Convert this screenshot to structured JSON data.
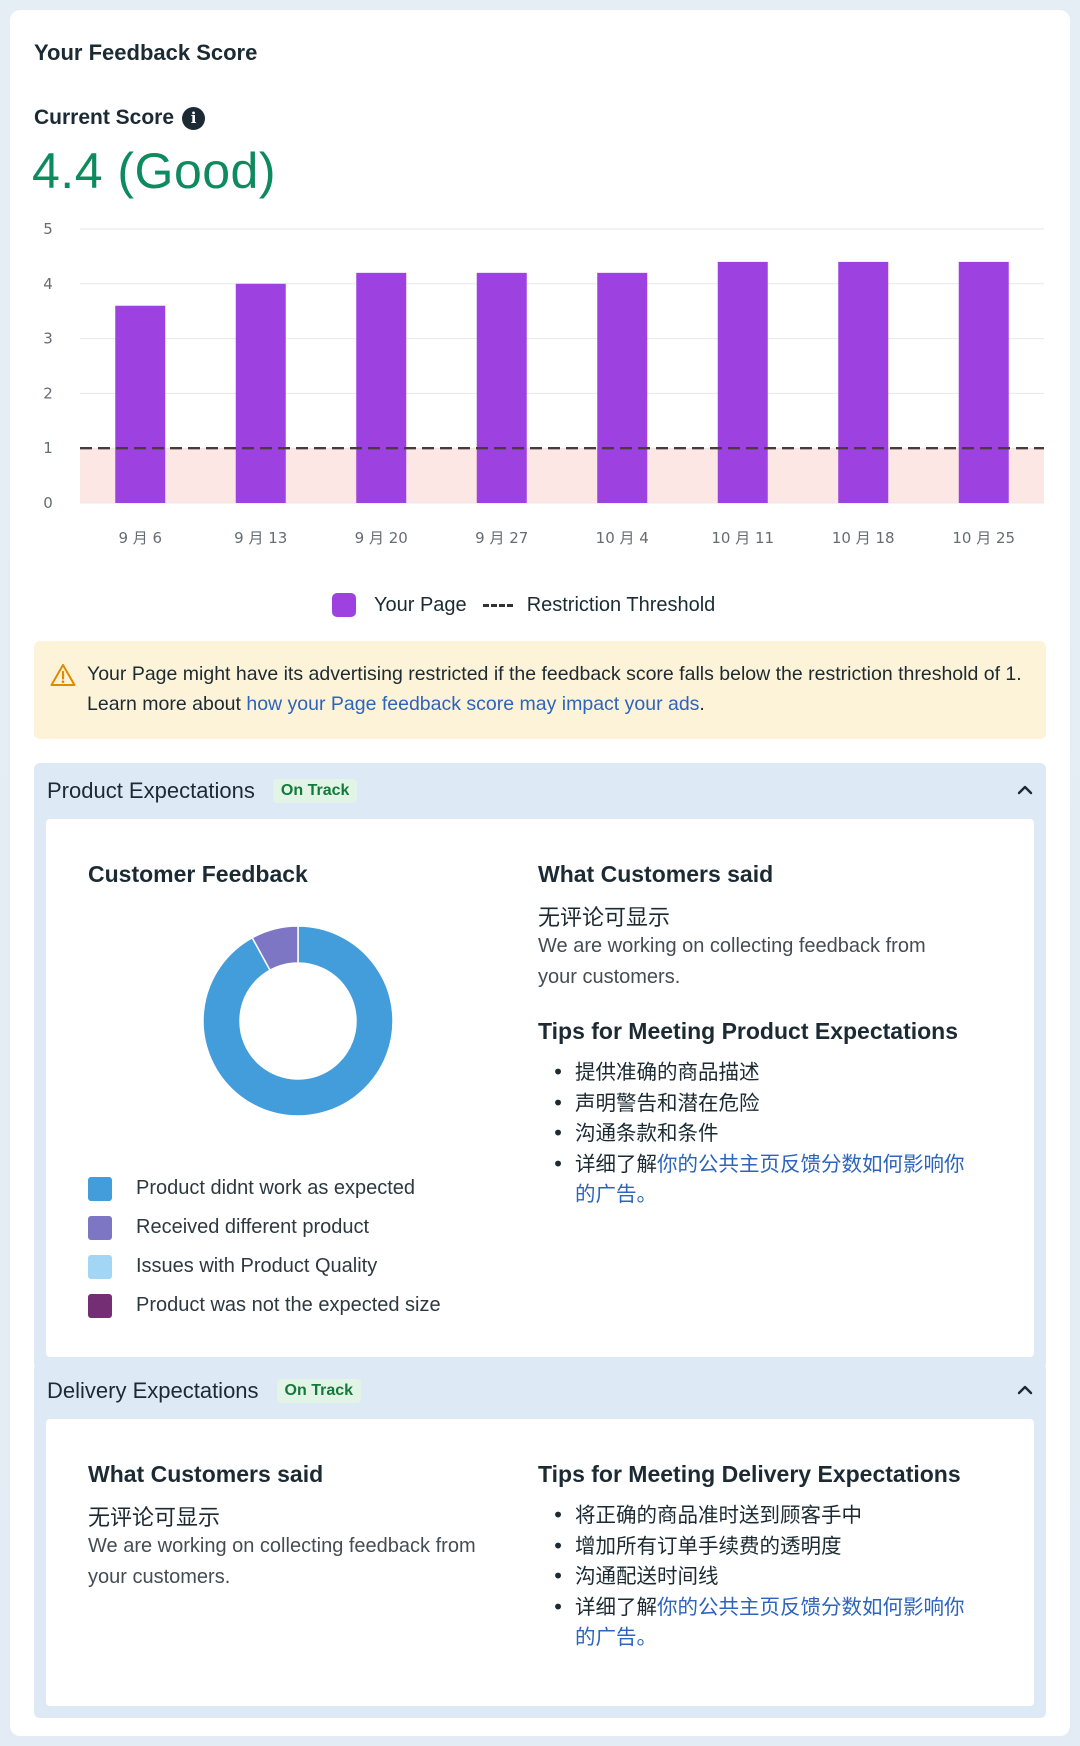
{
  "header": {
    "title": "Your Feedback Score"
  },
  "score": {
    "label": "Current Score",
    "info_icon": "info-icon",
    "value": "4.4 (Good)",
    "color": "#0e8a5f"
  },
  "chart_data": {
    "type": "bar",
    "categories": [
      "9 月 6",
      "9 月 13",
      "9 月 20",
      "9 月 27",
      "10 月 4",
      "10 月 11",
      "10 月 18",
      "10 月 25"
    ],
    "series": [
      {
        "name": "Your Page",
        "values": [
          3.6,
          4.0,
          4.2,
          4.2,
          4.2,
          4.4,
          4.4,
          4.4
        ],
        "color": "#9d41e0"
      }
    ],
    "threshold": {
      "name": "Restriction Threshold",
      "value": 1
    },
    "yticks": [
      "0",
      "1",
      "2",
      "3",
      "4",
      "5"
    ],
    "ylim": [
      0,
      5
    ],
    "title": "",
    "xlabel": "",
    "ylabel": "",
    "legend": [
      "Your Page",
      "Restriction Threshold"
    ]
  },
  "alert": {
    "text": "Your Page might have its advertising restricted if the feedback score falls below the restriction threshold of 1. Learn more about ",
    "link": "how your Page feedback score may impact your ads",
    "end": "."
  },
  "product": {
    "title": "Product Expectations",
    "badge": "On Track",
    "feedback_title": "Customer Feedback",
    "said_title": "What Customers said",
    "no_reviews": "无评论可显示",
    "working": "We are working on collecting feedback from your customers.",
    "tips_title": "Tips for Meeting Product Expectations",
    "tips": [
      "提供准确的商品描述",
      "声明警告和潜在危险",
      "沟通条款和条件"
    ],
    "tip_last_prefix": "详细了解",
    "tip_last_link": "你的公共主页反馈分数如何影响你的广告。",
    "donut": [
      {
        "label": "Product didnt work as expected",
        "value": 92,
        "color": "#439ddb"
      },
      {
        "label": "Received different product",
        "value": 8,
        "color": "#7d76c5"
      },
      {
        "label": "Issues with Product Quality",
        "value": 0,
        "color": "#a3d5f5"
      },
      {
        "label": "Product was not the expected size",
        "value": 0,
        "color": "#742f74"
      }
    ]
  },
  "delivery": {
    "title": "Delivery Expectations",
    "badge": "On Track",
    "said_title": "What Customers said",
    "no_reviews": "无评论可显示",
    "working": "We are working on collecting feedback from your customers.",
    "tips_title": "Tips for Meeting Delivery Expectations",
    "tips": [
      "将正确的商品准时送到顾客手中",
      "增加所有订单手续费的透明度",
      "沟通配送时间线"
    ],
    "tip_last_prefix": "详细了解",
    "tip_last_link": "你的公共主页反馈分数如何影响你的广告。"
  }
}
